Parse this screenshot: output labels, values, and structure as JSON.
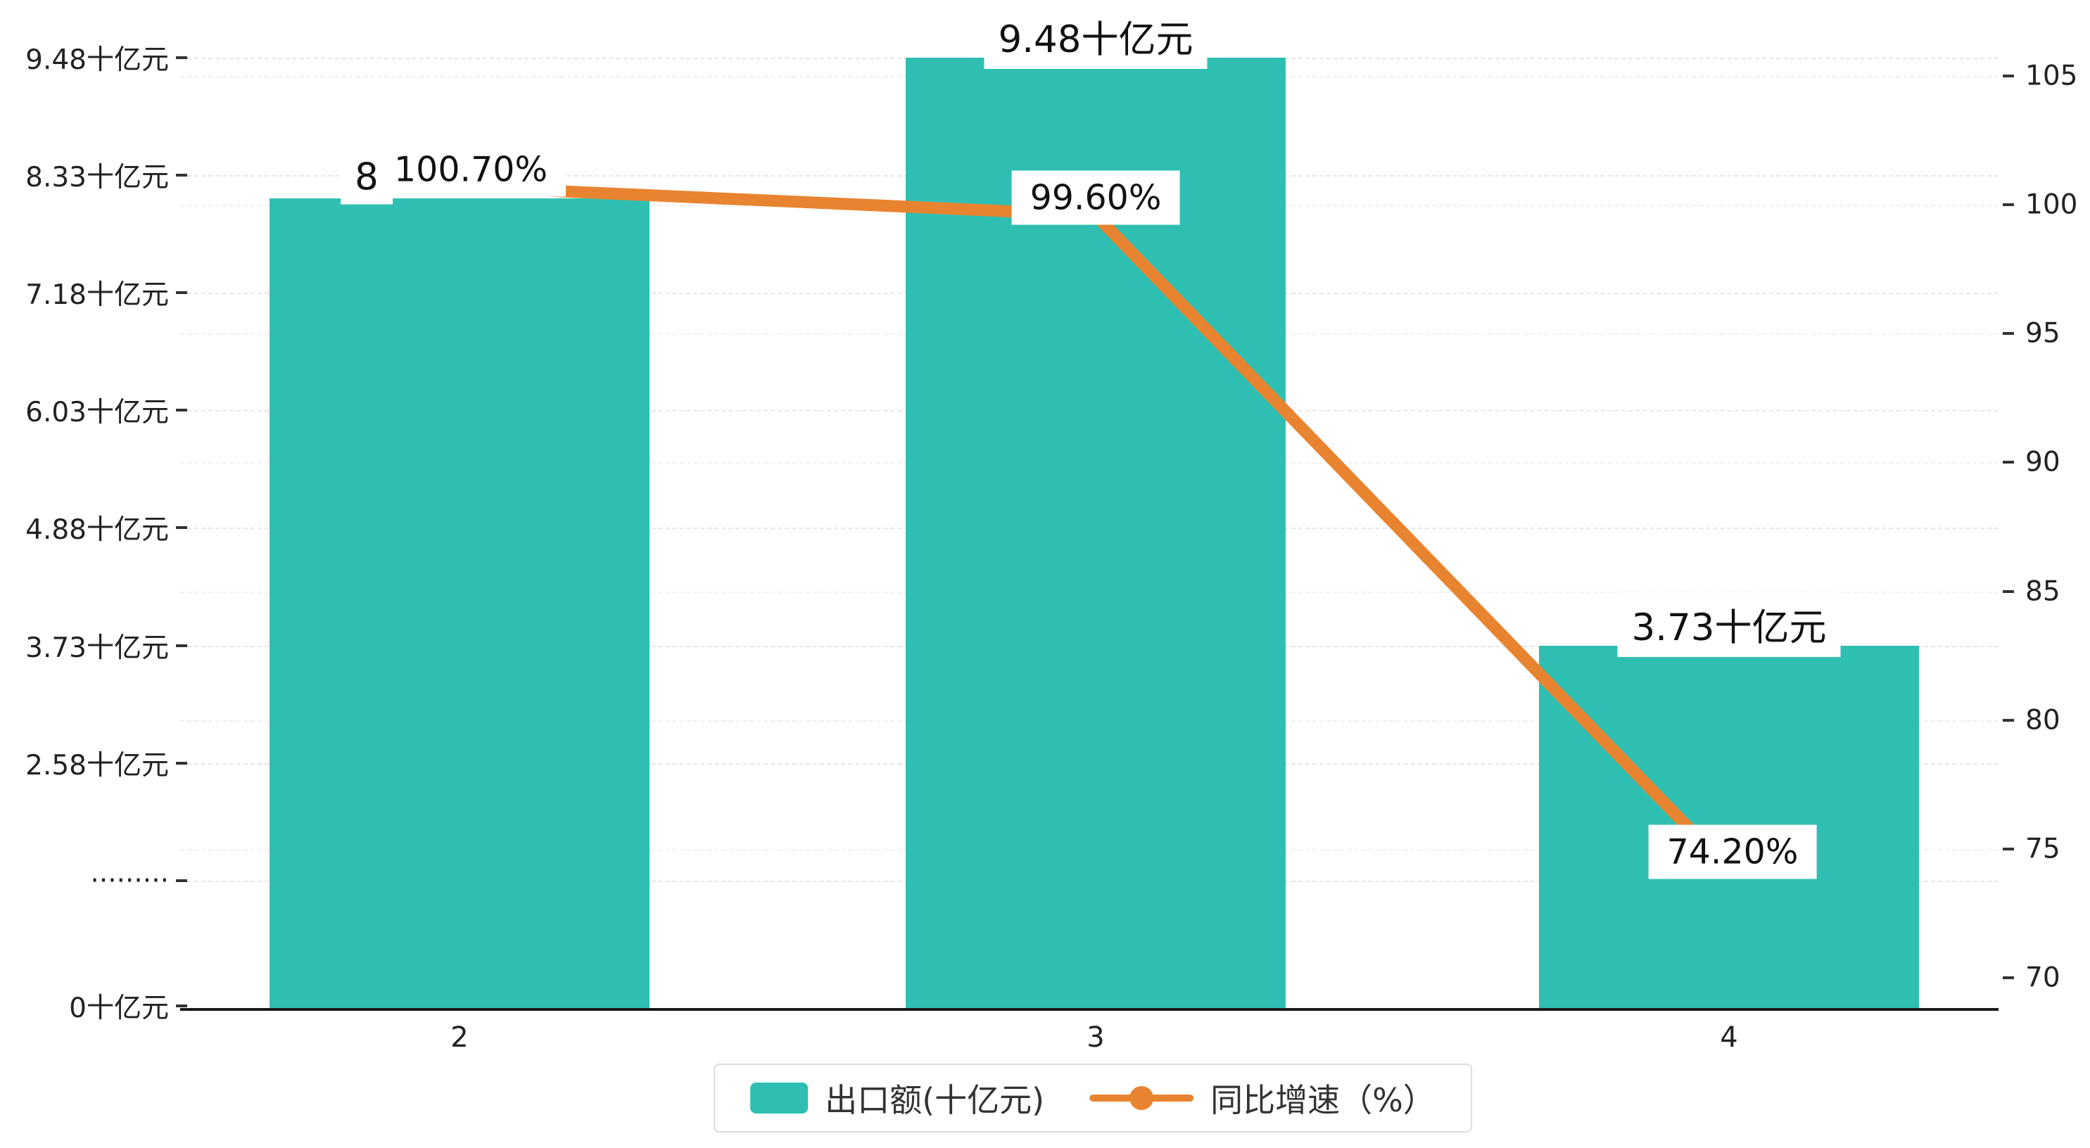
{
  "chart_data": {
    "type": "bar",
    "subtype": "bar-line-combo",
    "categories": [
      "2",
      "3",
      "4"
    ],
    "series": [
      {
        "name": "出口额(十亿元)",
        "type": "bar",
        "axis": "left",
        "color": "#2fbfb2",
        "values": [
          8.1,
          9.48,
          3.73
        ],
        "labels": [
          "8",
          "9.48十亿元",
          "3.73十亿元"
        ]
      },
      {
        "name": "同比增速（%）",
        "type": "line",
        "axis": "right",
        "color": "#e8842f",
        "values": [
          100.7,
          99.6,
          74.2
        ],
        "labels": [
          "100.70%",
          "99.60%",
          "74.20%"
        ]
      }
    ],
    "left_axis": {
      "ticks": [
        {
          "value": 0,
          "label": "0十亿元"
        },
        {
          "value": 1.43,
          "label": "·········"
        },
        {
          "value": 2.58,
          "label": "2.58十亿元"
        },
        {
          "value": 3.73,
          "label": "3.73十亿元"
        },
        {
          "value": 4.88,
          "label": "4.88十亿元"
        },
        {
          "value": 6.03,
          "label": "6.03十亿元"
        },
        {
          "value": 7.18,
          "label": "7.18十亿元"
        },
        {
          "value": 8.33,
          "label": "8.33十亿元"
        },
        {
          "value": 9.48,
          "label": "9.48十亿元"
        }
      ],
      "range": [
        0,
        9.48
      ]
    },
    "right_axis": {
      "ticks": [
        70,
        75,
        80,
        85,
        90,
        95,
        100,
        105
      ],
      "range": [
        70,
        107.5
      ]
    },
    "grid": "dashed-horizontal",
    "legend_position": "bottom-center",
    "background": "#ffffff"
  },
  "legend": {
    "items": [
      {
        "label": "出口额(十亿元)"
      },
      {
        "label": "同比增速（%）"
      }
    ]
  },
  "colors": {
    "bar": "#2fbfb2",
    "line": "#e8842f",
    "axis": "#1a1a1a",
    "grid": "#e6e6e6",
    "background": "#ffffff"
  }
}
